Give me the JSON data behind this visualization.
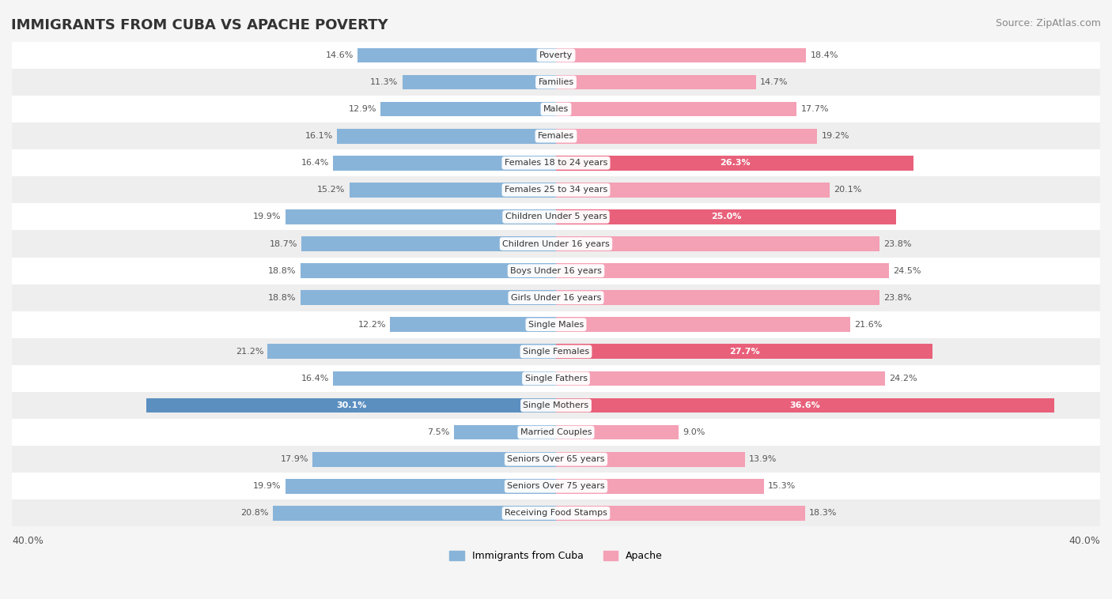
{
  "title": "IMMIGRANTS FROM CUBA VS APACHE POVERTY",
  "source": "Source: ZipAtlas.com",
  "categories": [
    "Poverty",
    "Families",
    "Males",
    "Females",
    "Females 18 to 24 years",
    "Females 25 to 34 years",
    "Children Under 5 years",
    "Children Under 16 years",
    "Boys Under 16 years",
    "Girls Under 16 years",
    "Single Males",
    "Single Females",
    "Single Fathers",
    "Single Mothers",
    "Married Couples",
    "Seniors Over 65 years",
    "Seniors Over 75 years",
    "Receiving Food Stamps"
  ],
  "cuba_values": [
    14.6,
    11.3,
    12.9,
    16.1,
    16.4,
    15.2,
    19.9,
    18.7,
    18.8,
    18.8,
    12.2,
    21.2,
    16.4,
    30.1,
    7.5,
    17.9,
    19.9,
    20.8
  ],
  "apache_values": [
    18.4,
    14.7,
    17.7,
    19.2,
    26.3,
    20.1,
    25.0,
    23.8,
    24.5,
    23.8,
    21.6,
    27.7,
    24.2,
    36.6,
    9.0,
    13.9,
    15.3,
    18.3
  ],
  "cuba_color": "#89b4d9",
  "apache_color": "#f4a0b5",
  "cuba_highlight_color": "#5a8fc0",
  "apache_highlight_color": "#e8607a",
  "label_color_default": "#555555",
  "max_value": 40.0,
  "bar_height": 0.55,
  "background_color": "#f5f5f5",
  "row_bg_light": "#ffffff",
  "row_bg_dark": "#eeeeee",
  "legend_cuba": "Immigrants from Cuba",
  "legend_apache": "Apache"
}
